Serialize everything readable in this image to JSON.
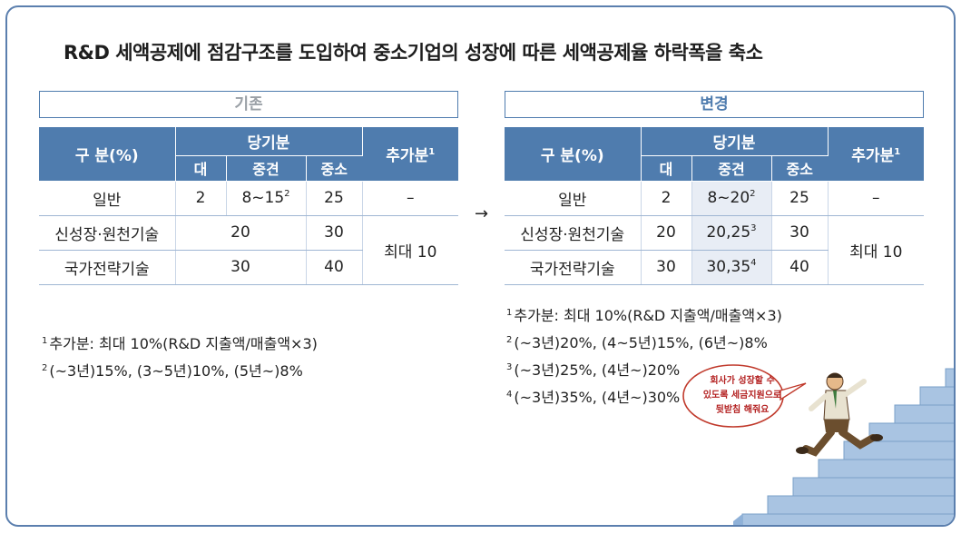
{
  "title": "R&D 세액공제에 점감구조를 도입하여 중소기업의 성장에 따른 세액공제율 하락폭을 축소",
  "before": {
    "heading": "기존",
    "col_group_label": "구 분(%)",
    "col_current": "당기분",
    "col_extra": "추가분",
    "col_extra_sup": "1",
    "sub_cols": [
      "대",
      "중견",
      "중소"
    ],
    "rows": [
      {
        "label": "일반",
        "large": "2",
        "mid": "8~15",
        "mid_sup": "2",
        "small": "25",
        "extra": "–"
      },
      {
        "label": "신성장·원천기술",
        "merged": "20",
        "small": "30"
      },
      {
        "label": "국가전략기술",
        "merged": "30",
        "small": "40"
      }
    ],
    "extra_merged": "최대 10",
    "notes": [
      {
        "sup": "1",
        "text": "추가분: 최대 10%(R&D 지출액/매출액×3)"
      },
      {
        "sup": "2",
        "text": "(~3년)15%, (3~5년)10%, (5년~)8%"
      }
    ]
  },
  "arrow": "→",
  "after": {
    "heading": "변경",
    "col_group_label": "구 분(%)",
    "col_current": "당기분",
    "col_extra": "추가분",
    "col_extra_sup": "1",
    "sub_cols": [
      "대",
      "중견",
      "중소"
    ],
    "rows": [
      {
        "label": "일반",
        "large": "2",
        "mid": "8~20",
        "mid_sup": "2",
        "small": "25",
        "extra": "–"
      },
      {
        "label": "신성장·원천기술",
        "large": "20",
        "mid": "20,25",
        "mid_sup": "3",
        "small": "30"
      },
      {
        "label": "국가전략기술",
        "large": "30",
        "mid": "30,35",
        "mid_sup": "4",
        "small": "40"
      }
    ],
    "extra_merged": "최대 10",
    "notes": [
      {
        "sup": "1",
        "text": "추가분: 최대 10%(R&D 지출액/매출액×3)"
      },
      {
        "sup": "2",
        "text": "(~3년)20%, (4~5년)15%, (6년~)8%"
      },
      {
        "sup": "3",
        "text": "(~3년)25%, (4년~)20%"
      },
      {
        "sup": "4",
        "text": "(~3년)35%, (4년~)30%"
      }
    ]
  },
  "speech_bubble": {
    "line1": "회사가 성장할 수",
    "line2": "있도록 세금지원으로",
    "line3": "뒷받침 해줘요"
  },
  "colors": {
    "header_blue": "#4f7cae",
    "frame_blue": "#5b7fae",
    "shade": "#e8edf5",
    "stair": "#a9c4e2"
  }
}
